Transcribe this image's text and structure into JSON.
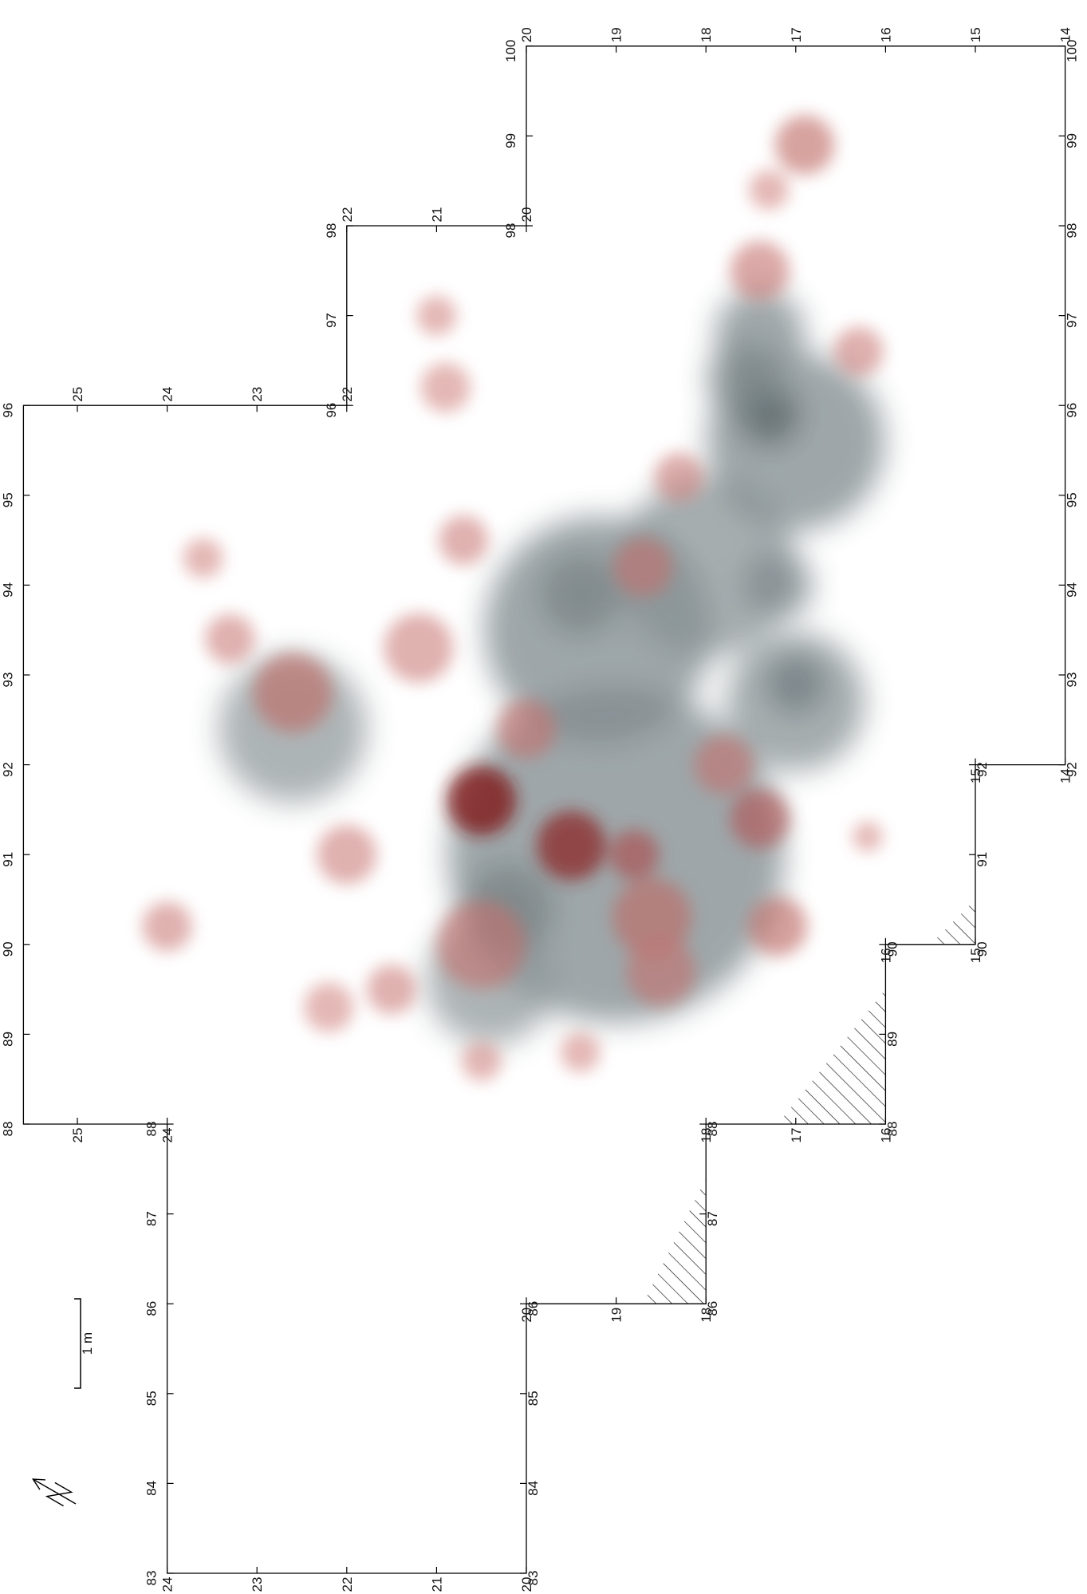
{
  "map": {
    "kind": "excavation-density-plan",
    "orientation": "rotated-90",
    "colors": {
      "outline": "#000000",
      "density_gray_light": "#c9ced0",
      "density_gray_dark": "#3a4a4e",
      "density_red_light": "#f5b2ad",
      "density_red_dark": "#7a0f10",
      "hatch": "#000000"
    },
    "scale_bar": {
      "label": "1 m"
    },
    "north_arrow": {
      "icon": "north-arrow-icon"
    },
    "x_ticks": [
      "83",
      "84",
      "85",
      "86",
      "87",
      "88",
      "89",
      "90",
      "91",
      "92",
      "93",
      "94",
      "95",
      "96",
      "97",
      "98",
      "99",
      "100"
    ],
    "y_ticks": [
      "14",
      "15",
      "16",
      "17",
      "18",
      "19",
      "20",
      "21",
      "22",
      "23",
      "24",
      "25"
    ],
    "corner_labels": {
      "bl": [
        "20",
        "83"
      ],
      "tl": [
        "24",
        "83"
      ],
      "tl2": [
        "88",
        "25"
      ],
      "tr": [
        "100",
        "20"
      ],
      "tr2": [
        "100",
        "14"
      ],
      "r1": [
        "14",
        "92"
      ],
      "s1": [
        "15",
        "90"
      ],
      "s2": [
        "16",
        "88"
      ],
      "s3": [
        "18",
        "86"
      ],
      "n1": [
        "98",
        "22"
      ],
      "n2": [
        "96",
        "25"
      ],
      "n3": [
        "88",
        "24"
      ]
    },
    "zones": {
      "gray": [
        {
          "x": 91.0,
          "y": 19.0,
          "r": 3.4,
          "w": 0.55
        },
        {
          "x": 93.5,
          "y": 19.2,
          "r": 2.3,
          "w": 0.55
        },
        {
          "x": 94.2,
          "y": 18.0,
          "r": 1.8,
          "w": 0.5
        },
        {
          "x": 95.6,
          "y": 17.0,
          "r": 1.8,
          "w": 0.55
        },
        {
          "x": 96.8,
          "y": 17.4,
          "r": 0.9,
          "w": 0.55
        },
        {
          "x": 92.4,
          "y": 22.6,
          "r": 1.5,
          "w": 0.45
        },
        {
          "x": 89.6,
          "y": 20.4,
          "r": 1.3,
          "w": 0.45
        },
        {
          "x": 92.7,
          "y": 17.0,
          "r": 1.4,
          "w": 0.5
        },
        {
          "x": 90.4,
          "y": 20.2,
          "r": 0.9,
          "w": 0.6
        },
        {
          "x": 93.9,
          "y": 19.4,
          "r": 0.8,
          "w": 0.6
        },
        {
          "x": 95.9,
          "y": 17.3,
          "r": 0.6,
          "w": 0.8
        },
        {
          "x": 96.3,
          "y": 17.6,
          "r": 0.7,
          "w": 0.6
        },
        {
          "x": 94.0,
          "y": 17.2,
          "r": 0.7,
          "w": 0.55
        },
        {
          "x": 92.9,
          "y": 17.0,
          "r": 0.6,
          "w": 0.65
        }
      ],
      "red": [
        {
          "x": 91.6,
          "y": 20.5,
          "r": 0.7,
          "w": 0.95
        },
        {
          "x": 91.1,
          "y": 19.5,
          "r": 0.7,
          "w": 0.85
        },
        {
          "x": 91.0,
          "y": 18.8,
          "r": 0.5,
          "w": 0.6
        },
        {
          "x": 91.4,
          "y": 17.4,
          "r": 0.6,
          "w": 0.55
        },
        {
          "x": 90.3,
          "y": 18.6,
          "r": 0.8,
          "w": 0.45
        },
        {
          "x": 90.2,
          "y": 17.2,
          "r": 0.6,
          "w": 0.45
        },
        {
          "x": 89.7,
          "y": 18.5,
          "r": 0.7,
          "w": 0.4
        },
        {
          "x": 90.0,
          "y": 20.5,
          "r": 0.9,
          "w": 0.4
        },
        {
          "x": 92.8,
          "y": 22.6,
          "r": 0.8,
          "w": 0.45
        },
        {
          "x": 93.3,
          "y": 21.2,
          "r": 0.7,
          "w": 0.35
        },
        {
          "x": 91.0,
          "y": 22.0,
          "r": 0.6,
          "w": 0.35
        },
        {
          "x": 89.5,
          "y": 21.5,
          "r": 0.5,
          "w": 0.35
        },
        {
          "x": 94.5,
          "y": 20.7,
          "r": 0.5,
          "w": 0.35
        },
        {
          "x": 94.2,
          "y": 18.7,
          "r": 0.6,
          "w": 0.4
        },
        {
          "x": 95.2,
          "y": 18.3,
          "r": 0.5,
          "w": 0.35
        },
        {
          "x": 97.5,
          "y": 17.4,
          "r": 0.6,
          "w": 0.4
        },
        {
          "x": 96.6,
          "y": 16.3,
          "r": 0.5,
          "w": 0.35
        },
        {
          "x": 98.9,
          "y": 16.9,
          "r": 0.6,
          "w": 0.45
        },
        {
          "x": 98.4,
          "y": 17.3,
          "r": 0.4,
          "w": 0.3
        },
        {
          "x": 96.2,
          "y": 20.9,
          "r": 0.5,
          "w": 0.3
        },
        {
          "x": 97.0,
          "y": 21.0,
          "r": 0.4,
          "w": 0.3
        },
        {
          "x": 90.2,
          "y": 24.0,
          "r": 0.5,
          "w": 0.35
        },
        {
          "x": 94.3,
          "y": 23.6,
          "r": 0.4,
          "w": 0.3
        },
        {
          "x": 93.4,
          "y": 23.3,
          "r": 0.5,
          "w": 0.35
        },
        {
          "x": 92.4,
          "y": 20.0,
          "r": 0.6,
          "w": 0.4
        },
        {
          "x": 89.3,
          "y": 22.2,
          "r": 0.5,
          "w": 0.3
        },
        {
          "x": 88.7,
          "y": 20.5,
          "r": 0.4,
          "w": 0.3
        },
        {
          "x": 88.8,
          "y": 19.4,
          "r": 0.4,
          "w": 0.3
        },
        {
          "x": 92.0,
          "y": 17.8,
          "r": 0.6,
          "w": 0.4
        },
        {
          "x": 91.2,
          "y": 16.2,
          "r": 0.3,
          "w": 0.3
        }
      ]
    }
  }
}
